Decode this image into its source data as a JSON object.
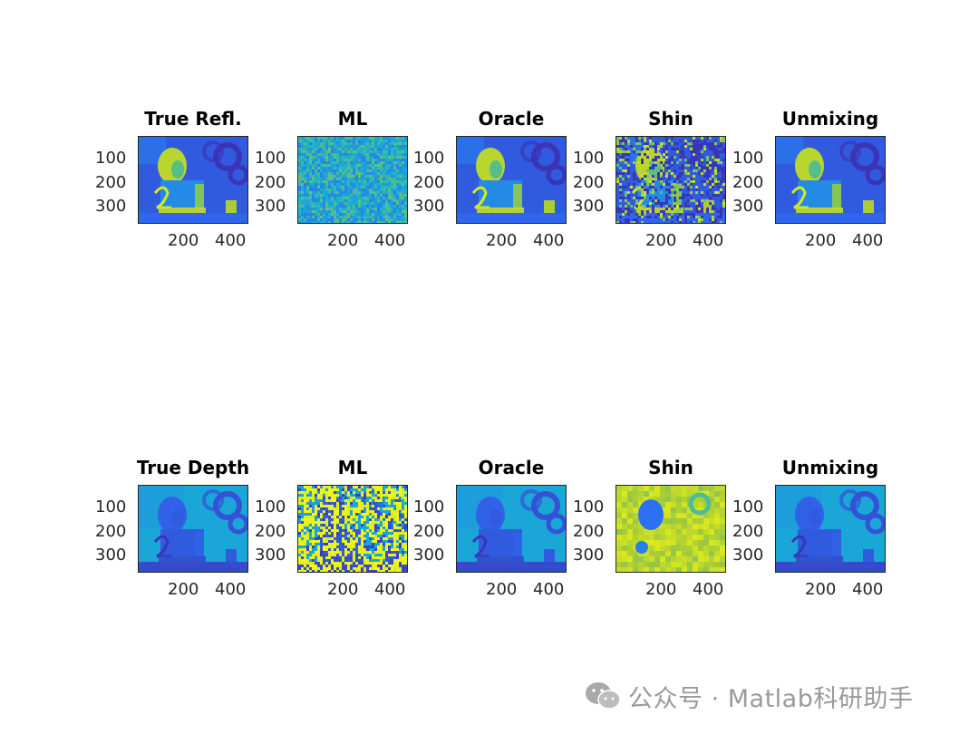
{
  "chart_data": [
    {
      "type": "heatmap",
      "title": "True Refl.",
      "yticks": [
        "100",
        "200",
        "300"
      ],
      "xticks": [
        "200",
        "400"
      ],
      "row": "reflectance",
      "content": "reflectance-clean"
    },
    {
      "type": "heatmap",
      "title": "ML",
      "yticks": [
        "100",
        "200",
        "300"
      ],
      "xticks": [
        "200",
        "400"
      ],
      "row": "reflectance",
      "content": "reflectance-noise"
    },
    {
      "type": "heatmap",
      "title": "Oracle",
      "yticks": [
        "100",
        "200",
        "300"
      ],
      "xticks": [
        "200",
        "400"
      ],
      "row": "reflectance",
      "content": "reflectance-clean"
    },
    {
      "type": "heatmap",
      "title": "Shin",
      "yticks": [
        "100",
        "200",
        "300"
      ],
      "xticks": [
        "200",
        "400"
      ],
      "row": "reflectance",
      "content": "reflectance-speckled"
    },
    {
      "type": "heatmap",
      "title": "Unmixing",
      "yticks": [
        "100",
        "200",
        "300"
      ],
      "xticks": [
        "200",
        "400"
      ],
      "row": "reflectance",
      "content": "reflectance-clean"
    },
    {
      "type": "heatmap",
      "title": "True Depth",
      "yticks": [
        "100",
        "200",
        "300"
      ],
      "xticks": [
        "200",
        "400"
      ],
      "row": "depth",
      "content": "depth-clean"
    },
    {
      "type": "heatmap",
      "title": "ML",
      "yticks": [
        "100",
        "200",
        "300"
      ],
      "xticks": [
        "200",
        "400"
      ],
      "row": "depth",
      "content": "depth-noise"
    },
    {
      "type": "heatmap",
      "title": "Oracle",
      "yticks": [
        "100",
        "200",
        "300"
      ],
      "xticks": [
        "200",
        "400"
      ],
      "row": "depth",
      "content": "depth-clean"
    },
    {
      "type": "heatmap",
      "title": "Shin",
      "yticks": [
        "100",
        "200",
        "300"
      ],
      "xticks": [
        "200",
        "400"
      ],
      "row": "depth",
      "content": "depth-yellow"
    },
    {
      "type": "heatmap",
      "title": "Unmixing",
      "yticks": [
        "100",
        "200",
        "300"
      ],
      "xticks": [
        "200",
        "400"
      ],
      "row": "depth",
      "content": "depth-clean"
    }
  ],
  "colormap": "parula",
  "colors": {
    "parula_low": "#3e26a8",
    "parula_blue": "#2f6cf3",
    "parula_cyan": "#16b4cf",
    "parula_green": "#7ac96a",
    "parula_yellow": "#f9fb0e",
    "watermark": "#9a9a9a"
  },
  "watermark": {
    "text": "公众号 · Matlab科研助手",
    "icon": "wechat-icon"
  }
}
